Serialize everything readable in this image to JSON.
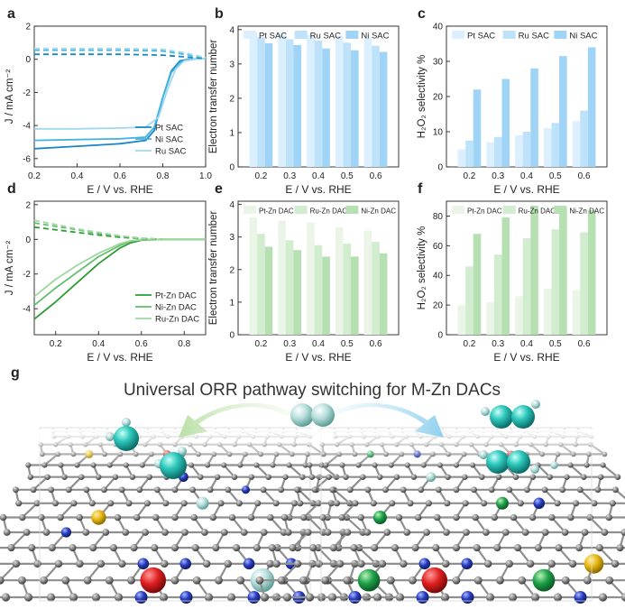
{
  "colors": {
    "pt_sac": "#dcefff",
    "ru_sac": "#bfe2fb",
    "ni_sac": "#9fd4f7",
    "pt_zn": "#eaf5e8",
    "ru_zn": "#d2ecd0",
    "ni_zn": "#b6e0b2",
    "line_pt_sac": "#1a86c5",
    "line_ni_sac": "#45b3e0",
    "line_ru_sac": "#9fd8ef",
    "line_pt_zn": "#2e9b35",
    "line_ni_zn": "#63bd6b",
    "line_ru_zn": "#9fd79f"
  },
  "panels": {
    "a": {
      "letter": "a",
      "xlabel": "E / V vs. RHE",
      "ylabel": "J / mA cm⁻²",
      "xticks": [
        "0.2",
        "0.4",
        "0.6",
        "0.8",
        "1.0"
      ],
      "yticks": [
        "2",
        "0",
        "-2",
        "-4",
        "-6"
      ],
      "legend": [
        "Pt SAC",
        "Ni SAC",
        "Ru SAC"
      ]
    },
    "b": {
      "letter": "b",
      "xlabel": "E / V vs. RHE",
      "ylabel": "Electron transfer number",
      "xticks": [
        "0.2",
        "0.3",
        "0.4",
        "0.5",
        "0.6"
      ],
      "yticks": [
        "0",
        "1",
        "2",
        "3",
        "4"
      ],
      "legend": [
        "Pt SAC",
        "Ru SAC",
        "Ni SAC"
      ]
    },
    "c": {
      "letter": "c",
      "xlabel": "E / V vs. RHE",
      "ylabel": "H₂O₂ selectivity %",
      "xticks": [
        "0.2",
        "0.3",
        "0.4",
        "0.5",
        "0.6"
      ],
      "yticks": [
        "0",
        "10",
        "20",
        "30",
        "40"
      ],
      "legend": [
        "Pt SAC",
        "Ru SAC",
        "Ni SAC"
      ]
    },
    "d": {
      "letter": "d",
      "xlabel": "E / V vs. RHE",
      "ylabel": "J / mA cm⁻²",
      "xticks": [
        "0.2",
        "0.4",
        "0.6",
        "0.8"
      ],
      "yticks": [
        "2",
        "0",
        "-2",
        "-4"
      ],
      "legend": [
        "Pt-Zn DAC",
        "Ni-Zn DAC",
        "Ru-Zn DAC"
      ]
    },
    "e": {
      "letter": "e",
      "xlabel": "E / V vs. RHE",
      "ylabel": "Electron transfer number",
      "xticks": [
        "0.2",
        "0.3",
        "0.4",
        "0.5",
        "0.6"
      ],
      "yticks": [
        "0",
        "1",
        "2",
        "3",
        "4"
      ],
      "legend": [
        "Pt-Zn DAC",
        "Ru-Zn DAC",
        "Ni-Zn DAC"
      ]
    },
    "f": {
      "letter": "f",
      "xlabel": "E / V vs. RHE",
      "ylabel": "H₂O₂ selectivity %",
      "xticks": [
        "0.2",
        "0.3",
        "0.4",
        "0.5",
        "0.6"
      ],
      "yticks": [
        "0",
        "20",
        "40",
        "60",
        "80"
      ],
      "legend": [
        "Pt-Zn DAC",
        "Ru-Zn DAC",
        "Ni-Zn DAC"
      ]
    },
    "g": {
      "letter": "g",
      "title": "Universal ORR pathway switching for M-Zn DACs"
    }
  },
  "chart_data": [
    {
      "id": "a",
      "type": "line",
      "xlim": [
        0.2,
        1.0
      ],
      "ylim": [
        -6.5,
        2
      ],
      "grid": false,
      "legend": "bottom-right",
      "series": [
        {
          "name": "Pt SAC",
          "style": "solid",
          "x": [
            0.2,
            0.4,
            0.6,
            0.72,
            0.76,
            0.8,
            0.84,
            0.88,
            0.92,
            1.0
          ],
          "y": [
            -5.4,
            -5.25,
            -5.1,
            -4.9,
            -4.3,
            -2.3,
            -0.7,
            -0.1,
            0.0,
            0.05
          ]
        },
        {
          "name": "Ni SAC",
          "style": "solid",
          "x": [
            0.2,
            0.4,
            0.6,
            0.72,
            0.76,
            0.8,
            0.84,
            0.88,
            0.92,
            1.0
          ],
          "y": [
            -4.9,
            -4.85,
            -4.8,
            -4.7,
            -4.1,
            -2.3,
            -0.8,
            -0.2,
            0.0,
            0.05
          ]
        },
        {
          "name": "Ru SAC",
          "style": "solid",
          "x": [
            0.2,
            0.4,
            0.6,
            0.72,
            0.78,
            0.82,
            0.86,
            0.9,
            0.95,
            1.0
          ],
          "y": [
            -4.2,
            -4.2,
            -4.15,
            -4.1,
            -3.5,
            -1.9,
            -0.6,
            -0.1,
            0.0,
            0.05
          ]
        },
        {
          "name": "Pt SAC (dashed)",
          "style": "dashed",
          "x": [
            0.2,
            0.4,
            0.6,
            0.8,
            0.9,
            1.0
          ],
          "y": [
            0.3,
            0.3,
            0.3,
            0.25,
            0.15,
            0.05
          ]
        },
        {
          "name": "Ni SAC (dashed)",
          "style": "dashed",
          "x": [
            0.2,
            0.4,
            0.6,
            0.8,
            0.9,
            1.0
          ],
          "y": [
            0.55,
            0.55,
            0.55,
            0.5,
            0.3,
            0.08
          ]
        },
        {
          "name": "Ru SAC (dashed)",
          "style": "dashed",
          "x": [
            0.2,
            0.4,
            0.6,
            0.8,
            0.9,
            1.0
          ],
          "y": [
            0.65,
            0.65,
            0.65,
            0.6,
            0.4,
            0.1
          ]
        }
      ]
    },
    {
      "id": "b",
      "type": "bar",
      "ylim": [
        0,
        4.1
      ],
      "legend": "top",
      "categories": [
        "0.2",
        "0.3",
        "0.4",
        "0.5",
        "0.6"
      ],
      "series": [
        {
          "name": "Pt SAC",
          "values": [
            3.93,
            3.87,
            3.85,
            3.82,
            3.76
          ]
        },
        {
          "name": "Ru SAC",
          "values": [
            3.78,
            3.72,
            3.68,
            3.62,
            3.53
          ]
        },
        {
          "name": "Ni SAC",
          "values": [
            3.6,
            3.55,
            3.45,
            3.4,
            3.35
          ]
        }
      ]
    },
    {
      "id": "c",
      "type": "bar",
      "ylim": [
        0,
        40
      ],
      "legend": "top",
      "categories": [
        "0.2",
        "0.3",
        "0.4",
        "0.5",
        "0.6"
      ],
      "series": [
        {
          "name": "Pt SAC",
          "values": [
            5,
            7,
            9,
            11,
            13
          ]
        },
        {
          "name": "Ru SAC",
          "values": [
            7.5,
            8.5,
            10,
            12.5,
            16
          ]
        },
        {
          "name": "Ni SAC",
          "values": [
            22,
            25,
            28,
            31.5,
            34
          ]
        }
      ]
    },
    {
      "id": "d",
      "type": "line",
      "xlim": [
        0.1,
        0.9
      ],
      "ylim": [
        -5.5,
        2.2
      ],
      "grid": false,
      "legend": "bottom-right",
      "series": [
        {
          "name": "Pt-Zn DAC",
          "style": "solid",
          "x": [
            0.1,
            0.2,
            0.3,
            0.4,
            0.5,
            0.55,
            0.6,
            0.7,
            0.8,
            0.9
          ],
          "y": [
            -4.6,
            -3.6,
            -2.5,
            -1.4,
            -0.5,
            -0.2,
            -0.05,
            0.0,
            0.0,
            0.0
          ]
        },
        {
          "name": "Ni-Zn DAC",
          "style": "solid",
          "x": [
            0.1,
            0.2,
            0.3,
            0.4,
            0.5,
            0.55,
            0.6,
            0.7,
            0.8,
            0.9
          ],
          "y": [
            -3.8,
            -2.8,
            -1.9,
            -1.0,
            -0.35,
            -0.1,
            -0.02,
            0.0,
            0.0,
            0.0
          ]
        },
        {
          "name": "Ru-Zn DAC",
          "style": "solid",
          "x": [
            0.1,
            0.2,
            0.3,
            0.4,
            0.5,
            0.55,
            0.6,
            0.7,
            0.8,
            0.9
          ],
          "y": [
            -3.3,
            -2.3,
            -1.5,
            -0.8,
            -0.25,
            -0.08,
            -0.02,
            0.0,
            0.0,
            0.0
          ]
        },
        {
          "name": "Pt-Zn DAC (dashed)",
          "style": "dashed",
          "x": [
            0.1,
            0.2,
            0.3,
            0.4,
            0.5,
            0.6,
            0.7
          ],
          "y": [
            0.7,
            0.55,
            0.4,
            0.25,
            0.12,
            0.05,
            0.0
          ]
        },
        {
          "name": "Ni-Zn DAC (dashed)",
          "style": "dashed",
          "x": [
            0.1,
            0.2,
            0.3,
            0.4,
            0.5,
            0.6,
            0.7
          ],
          "y": [
            0.95,
            0.75,
            0.55,
            0.35,
            0.18,
            0.06,
            0.0
          ]
        },
        {
          "name": "Ru-Zn DAC (dashed)",
          "style": "dashed",
          "x": [
            0.1,
            0.2,
            0.3,
            0.4,
            0.5,
            0.6,
            0.7
          ],
          "y": [
            1.1,
            0.85,
            0.6,
            0.4,
            0.2,
            0.07,
            0.0
          ]
        }
      ]
    },
    {
      "id": "e",
      "type": "bar",
      "ylim": [
        0,
        4.1
      ],
      "legend": "top",
      "categories": [
        "0.2",
        "0.3",
        "0.4",
        "0.5",
        "0.6"
      ],
      "series": [
        {
          "name": "Pt-Zn DAC",
          "values": [
            3.6,
            3.5,
            3.45,
            3.3,
            3.2
          ]
        },
        {
          "name": "Ru-Zn DAC",
          "values": [
            3.1,
            2.9,
            2.75,
            2.8,
            2.85
          ]
        },
        {
          "name": "Ni-Zn DAC",
          "values": [
            2.7,
            2.6,
            2.4,
            2.4,
            2.5
          ]
        }
      ]
    },
    {
      "id": "f",
      "type": "bar",
      "ylim": [
        0,
        90
      ],
      "legend": "top",
      "categories": [
        "0.2",
        "0.3",
        "0.4",
        "0.5",
        "0.6"
      ],
      "series": [
        {
          "name": "Pt-Zn DAC",
          "values": [
            20,
            22,
            26,
            31,
            30
          ]
        },
        {
          "name": "Ru-Zn DAC",
          "values": [
            46,
            54,
            65,
            71,
            69
          ]
        },
        {
          "name": "Ni-Zn DAC",
          "values": [
            68,
            79,
            87,
            86,
            84
          ]
        }
      ]
    }
  ]
}
